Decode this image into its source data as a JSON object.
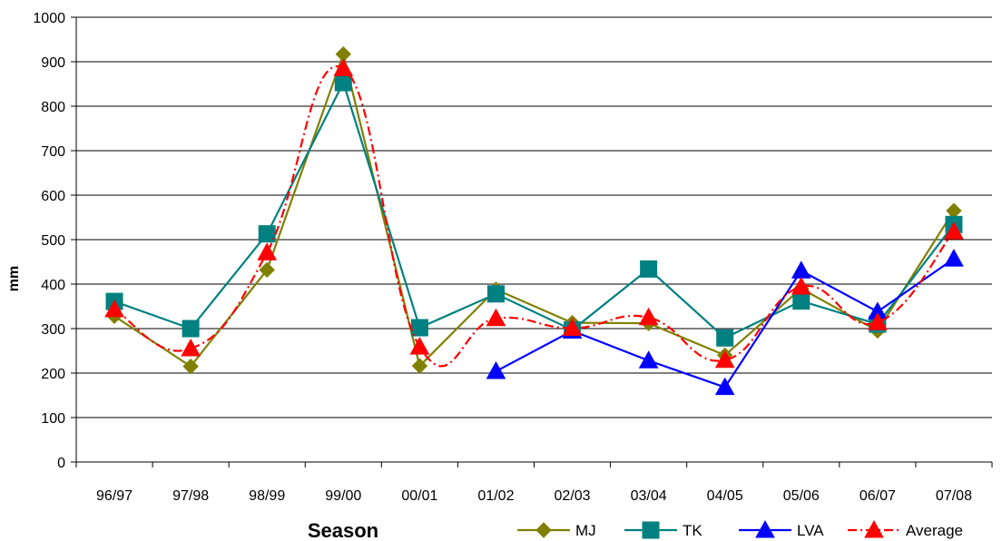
{
  "chart_data": {
    "type": "line",
    "title": "",
    "xlabel": "Season",
    "ylabel": "mm",
    "ylim": [
      0,
      1000
    ],
    "yticks": [
      "0",
      "100",
      "200",
      "300",
      "400",
      "500",
      "600",
      "700",
      "800",
      "900",
      "1000"
    ],
    "grid": "horizontal",
    "legend_position": "bottom-right",
    "categories": [
      "96/97",
      "97/98",
      "98/99",
      "99/00",
      "00/01",
      "01/02",
      "02/03",
      "03/04",
      "04/05",
      "05/06",
      "06/07",
      "07/08"
    ],
    "series": [
      {
        "name": "MJ",
        "color": "#808000",
        "marker": "diamond",
        "line": "solid",
        "smooth": false,
        "values": [
          328,
          215,
          432,
          917,
          216,
          388,
          313,
          312,
          240,
          390,
          295,
          565
        ]
      },
      {
        "name": "TK",
        "color": "#008080",
        "marker": "square",
        "line": "solid",
        "smooth": false,
        "values": [
          361,
          300,
          513,
          853,
          302,
          378,
          297,
          434,
          279,
          362,
          310,
          534
        ]
      },
      {
        "name": "LVA",
        "color": "#0000ff",
        "marker": "triangle",
        "line": "solid",
        "smooth": false,
        "values": [
          null,
          null,
          null,
          null,
          null,
          204,
          295,
          228,
          168,
          430,
          338,
          457
        ]
      },
      {
        "name": "Average",
        "color": "#ff0000",
        "marker": "triangle",
        "line": "dashdot",
        "smooth": true,
        "values": [
          343,
          255,
          471,
          885,
          259,
          323,
          301,
          325,
          229,
          394,
          314,
          518
        ]
      }
    ]
  }
}
